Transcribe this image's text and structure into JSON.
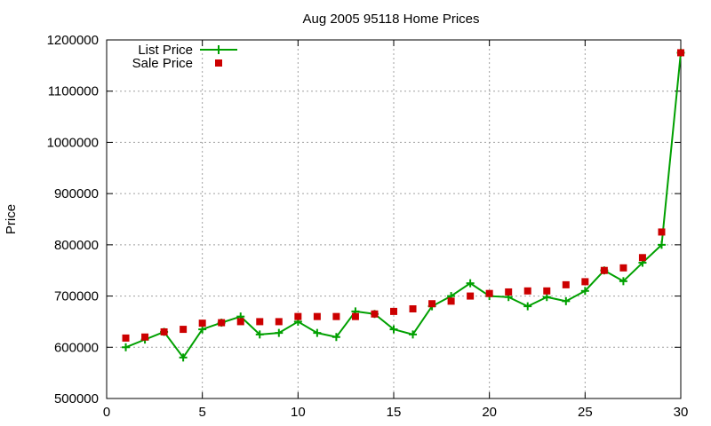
{
  "chart_data": {
    "type": "line",
    "title": "Aug 2005 95118 Home Prices",
    "xlabel": "",
    "ylabel": "Price",
    "xlim": [
      0,
      30
    ],
    "ylim": [
      500000,
      1200000
    ],
    "xticks": [
      0,
      5,
      10,
      15,
      20,
      25,
      30
    ],
    "yticks": [
      500000,
      600000,
      700000,
      800000,
      900000,
      1000000,
      1100000,
      1200000
    ],
    "grid": true,
    "legend_position": "top-left",
    "x": [
      1,
      2,
      3,
      4,
      5,
      6,
      7,
      8,
      9,
      10,
      11,
      12,
      13,
      14,
      15,
      16,
      17,
      18,
      19,
      20,
      21,
      22,
      23,
      24,
      25,
      26,
      27,
      28,
      29,
      30
    ],
    "series": [
      {
        "name": "List Price",
        "style": "lines+points",
        "color": "#00a000",
        "values": [
          600000,
          615000,
          630000,
          580000,
          635000,
          648000,
          660000,
          625000,
          628000,
          650000,
          628000,
          620000,
          670000,
          665000,
          635000,
          625000,
          680000,
          700000,
          725000,
          700000,
          698000,
          680000,
          698000,
          690000,
          710000,
          750000,
          729000,
          765000,
          800000,
          1175000
        ]
      },
      {
        "name": "Sale Price",
        "style": "points",
        "color": "#cc0000",
        "values": [
          618000,
          620000,
          630000,
          635000,
          647000,
          648000,
          650000,
          650000,
          650000,
          660000,
          660000,
          660000,
          660000,
          665000,
          670000,
          675000,
          685000,
          690000,
          700000,
          705000,
          708000,
          710000,
          710000,
          722000,
          728000,
          750000,
          755000,
          775000,
          825000,
          1175000
        ]
      }
    ]
  }
}
